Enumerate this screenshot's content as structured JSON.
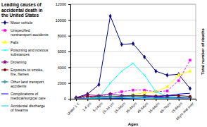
{
  "chart_data": {
    "type": "line",
    "title": "Leading causes of accidental death in the United States",
    "x_label": "Ages",
    "y_label": "Total number of deaths",
    "categories": [
      "Under 1 Y.",
      "1-4 yrs",
      "5-14yrs",
      "15-24 yrs",
      "25-34yrs",
      "35-44yrs",
      "45-54yrs",
      "55-64yrs",
      "65-74yrs",
      "75-84yrs",
      "85yrs and over"
    ],
    "ylim": [
      0,
      12000
    ],
    "yticks": [
      0,
      2000,
      4000,
      6000,
      8000,
      10000,
      12000
    ],
    "grid": true,
    "legend": "left",
    "series": [
      {
        "name": "Motor vehicle",
        "color": "#000080",
        "marker": "diamond",
        "line_style": "solid",
        "values": [
          150,
          600,
          1800,
          10500,
          6900,
          7000,
          5300,
          3500,
          3000,
          3100,
          1300
        ]
      },
      {
        "name": "Unspecified nontransport accidents",
        "color": "#ff00ff",
        "marker": "square",
        "line_style": "dashed",
        "values": [
          100,
          200,
          300,
          600,
          900,
          1100,
          1100,
          900,
          1000,
          2300,
          4900
        ]
      },
      {
        "name": "Falls",
        "color": "#ffff00",
        "marker": "triangle",
        "line_style": "solid",
        "values": [
          20,
          50,
          100,
          250,
          300,
          500,
          800,
          900,
          1500,
          3000,
          3500
        ]
      },
      {
        "name": "Poisoning and noxious substances",
        "color": "#00ffff",
        "marker": "cross",
        "line_style": "solid",
        "values": [
          20,
          40,
          100,
          2000,
          3500,
          4500,
          3000,
          900,
          300,
          200,
          150
        ]
      },
      {
        "name": "Drowning",
        "color": "#800080",
        "marker": "star",
        "line_style": "solid",
        "values": [
          50,
          500,
          400,
          600,
          400,
          400,
          350,
          250,
          200,
          150,
          80
        ]
      },
      {
        "name": "Exposure to smoke, fire, flames",
        "color": "#800000",
        "marker": "circle",
        "line_style": "solid",
        "values": [
          100,
          300,
          300,
          200,
          250,
          350,
          400,
          350,
          400,
          400,
          300
        ]
      },
      {
        "name": "Other land transport accidents",
        "color": "#008080",
        "marker": "plus",
        "line_style": "solid",
        "values": [
          10,
          50,
          250,
          350,
          300,
          350,
          300,
          150,
          100,
          60,
          30
        ]
      },
      {
        "name": "Complications of medical/surgical care",
        "color": "#0000ff",
        "marker": "none",
        "line_style": "solid",
        "values": [
          20,
          10,
          10,
          20,
          40,
          70,
          150,
          250,
          400,
          600,
          700
        ]
      },
      {
        "name": "Accidental discharge of firearms",
        "color": "#00ccff",
        "marker": "none",
        "line_style": "solid",
        "values": [
          5,
          20,
          100,
          200,
          120,
          100,
          80,
          60,
          40,
          30,
          10
        ]
      }
    ]
  }
}
